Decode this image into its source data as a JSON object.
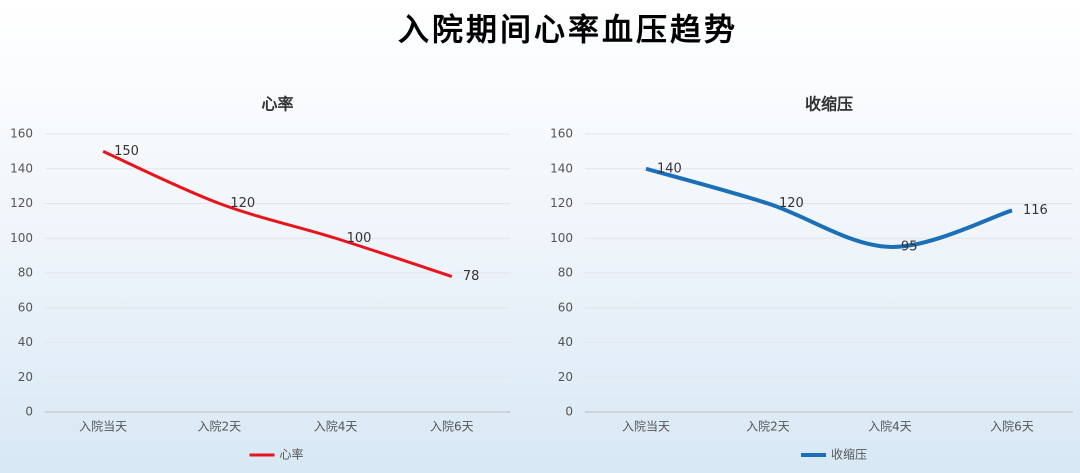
{
  "title": "入院期间心率血压趋势",
  "chart_data": [
    {
      "type": "line",
      "title": "心率",
      "categories": [
        "入院当天",
        "入院2天",
        "入院4天",
        "入院6天"
      ],
      "series": [
        {
          "name": "心率",
          "color": "#e8141c",
          "values": [
            150,
            120,
            100,
            78
          ]
        }
      ],
      "ylim": [
        0,
        160
      ],
      "yticks": [
        0,
        20,
        40,
        60,
        80,
        100,
        120,
        140,
        160
      ],
      "grid": true,
      "smooth": true,
      "legend": "bottom",
      "line_width": 3
    },
    {
      "type": "line",
      "title": "收缩压",
      "categories": [
        "入院当天",
        "入院2天",
        "入院4天",
        "入院6天"
      ],
      "series": [
        {
          "name": "收缩压",
          "color": "#1b6fb8",
          "values": [
            140,
            120,
            95,
            116
          ]
        }
      ],
      "ylim": [
        0,
        160
      ],
      "yticks": [
        0,
        20,
        40,
        60,
        80,
        100,
        120,
        140,
        160
      ],
      "grid": true,
      "smooth": true,
      "legend": "bottom",
      "line_width": 4
    }
  ]
}
